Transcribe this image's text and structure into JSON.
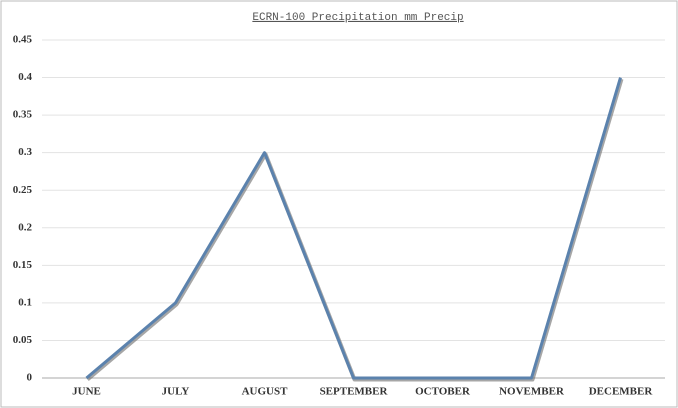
{
  "chart_data": {
    "type": "line",
    "title": "ECRN-100 Precipitation mm Precip",
    "categories": [
      "JUNE",
      "JULY",
      "AUGUST",
      "SEPTEMBER",
      "OCTOBER",
      "NOVEMBER",
      "DECEMBER"
    ],
    "series": [
      {
        "color": "#5b82ad",
        "values": [
          0,
          0.1,
          0.3,
          0,
          0,
          0,
          0.4
        ]
      }
    ],
    "ylim": [
      0,
      0.45
    ],
    "yticks": [
      0,
      0.05,
      0.1,
      0.15,
      0.2,
      0.25,
      0.3,
      0.35,
      0.4,
      0.45
    ],
    "grid": true
  }
}
